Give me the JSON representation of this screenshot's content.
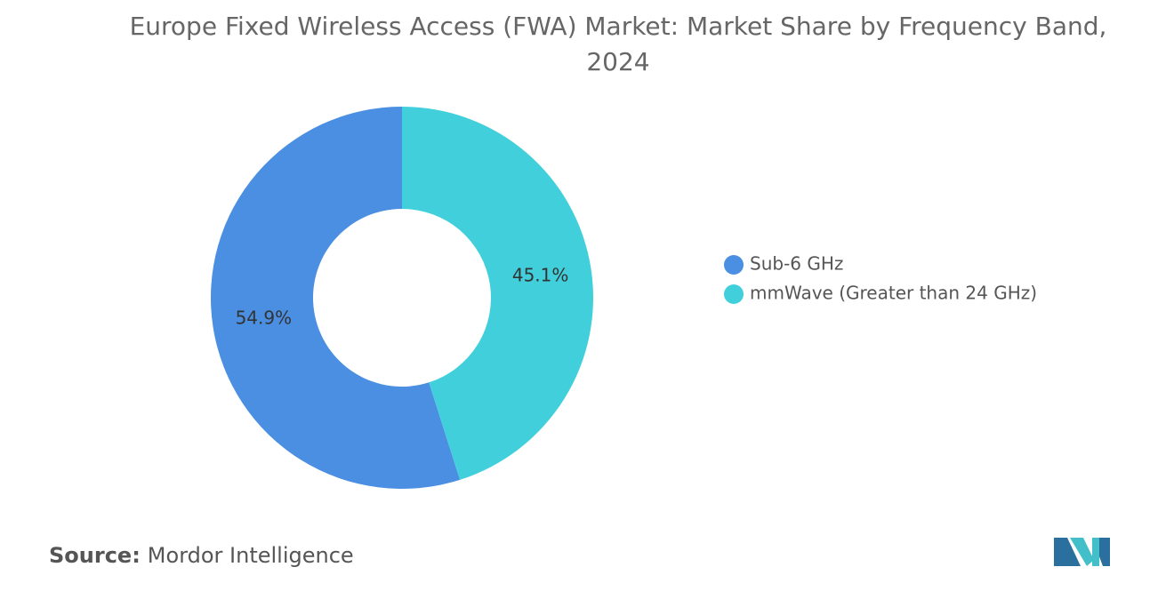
{
  "chart_data": {
    "type": "donut",
    "title": "Europe Fixed Wireless Access (FWA) Market: Market Share by Frequency Band, 2024",
    "series": [
      {
        "name": "Sub-6 GHz",
        "color": "#4a8fe2",
        "values": [
          54.9
        ],
        "value_labels": [
          "54.9%"
        ]
      },
      {
        "name": "mmWave (Greater than 24 GHz)",
        "color": "#41d0db",
        "values": [
          45.1
        ],
        "value_labels": [
          "45.1%"
        ]
      }
    ],
    "legend": "right"
  },
  "source_label": "Source:",
  "source": "Mordor Intelligence"
}
